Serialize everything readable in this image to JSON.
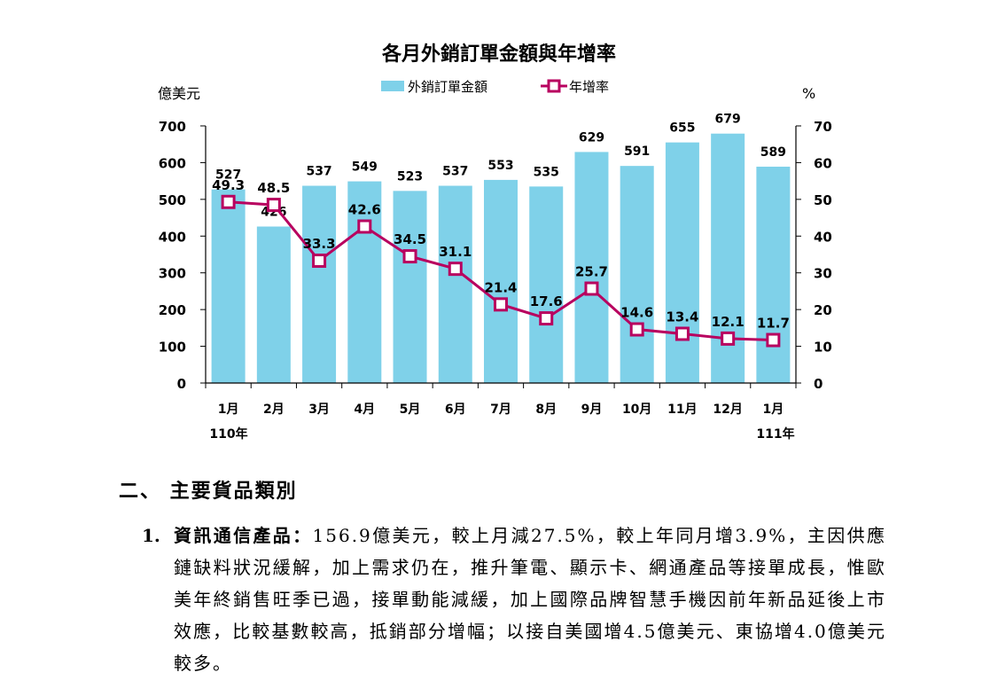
{
  "chart_data": {
    "type": "bar",
    "title": "各月外銷訂單金額與年增率",
    "y_left_unit": "億美元",
    "y_right_unit": "%",
    "legend": [
      "外銷訂單金額",
      "年增率"
    ],
    "y_left_ticks": [
      "700",
      "600",
      "500",
      "400",
      "300",
      "200",
      "100",
      "0"
    ],
    "y_right_ticks": [
      "70",
      "60",
      "50",
      "40",
      "30",
      "20",
      "10",
      "0"
    ],
    "ylim_left": [
      0,
      700
    ],
    "ylim_right": [
      0,
      70
    ],
    "categories": [
      "1月",
      "2月",
      "3月",
      "4月",
      "5月",
      "6月",
      "7月",
      "8月",
      "9月",
      "10月",
      "11月",
      "12月",
      "1月"
    ],
    "year_start_label": "110年",
    "year_end_label": "111年",
    "bar_values": [
      527,
      426,
      537,
      549,
      523,
      537,
      553,
      535,
      629,
      591,
      655,
      679,
      589
    ],
    "bar_labels": [
      "527",
      "426",
      "537",
      "549",
      "523",
      "537",
      "553",
      "535",
      "629",
      "591",
      "655",
      "679",
      "589"
    ],
    "line_values": [
      49.3,
      48.5,
      33.3,
      42.6,
      34.5,
      31.1,
      21.4,
      17.6,
      25.7,
      14.6,
      13.4,
      12.1,
      11.7
    ],
    "line_labels": [
      "49.3",
      "48.5",
      "33.3",
      "42.6",
      "34.5",
      "31.1",
      "21.4",
      "17.6",
      "25.7",
      "14.6",
      "13.4",
      "12.1",
      "11.7"
    ],
    "bar_color": "#7fd1e9",
    "line_color": "#b8005f"
  },
  "section": {
    "heading": "二、 主要貨品類別"
  },
  "item1": {
    "number": "1.",
    "title": "資訊通信產品：",
    "body": "156.9億美元，較上月減27.5%，較上年同月增3.9%，主因供應鏈缺料狀況緩解，加上需求仍在，推升筆電、顯示卡、網通產品等接單成長，惟歐美年終銷售旺季已過，接單動能減緩，加上國際品牌智慧手機因前年新品延後上市效應，比較基數較高，抵銷部分增幅；以接自美國增4.5億美元、東協增4.0億美元較多。"
  }
}
